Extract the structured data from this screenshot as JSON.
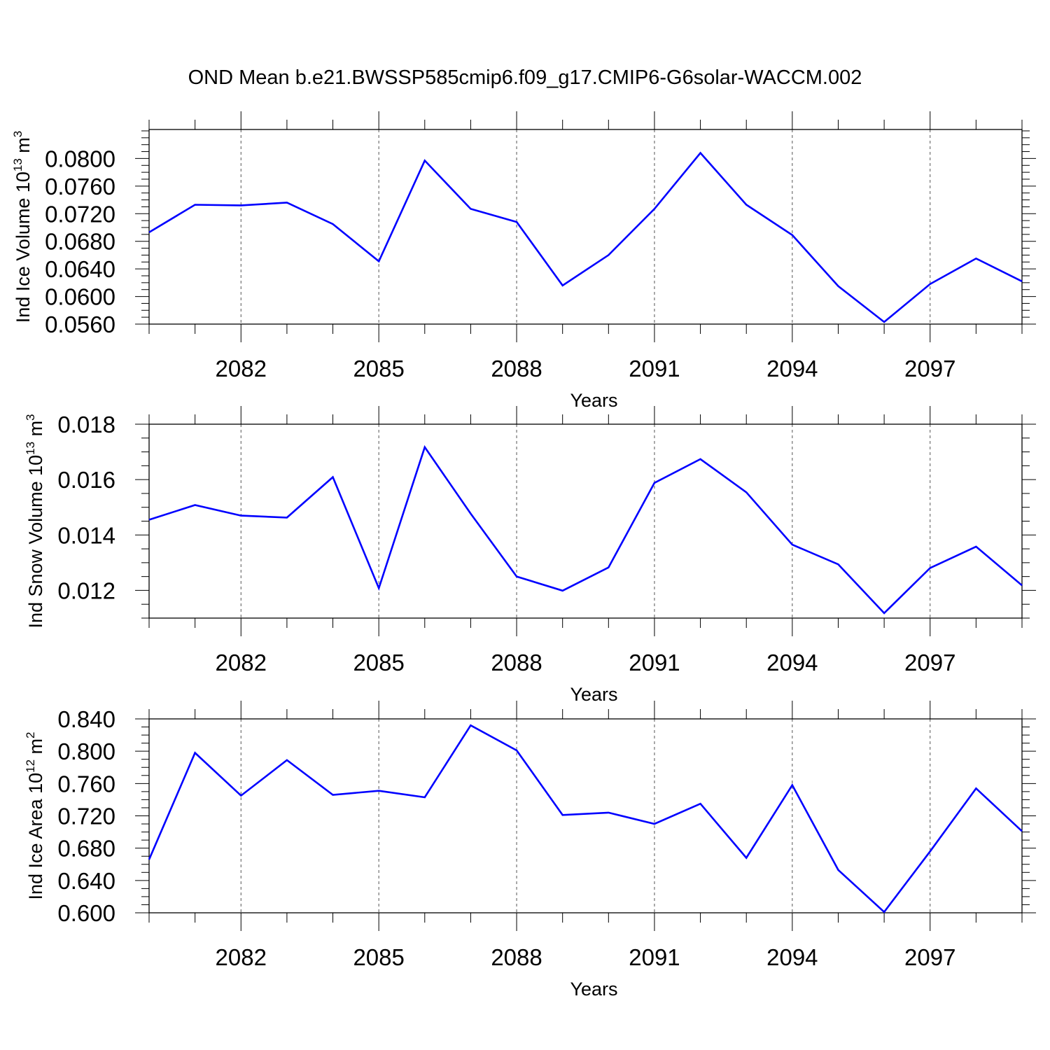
{
  "title": "OND Mean b.e21.BWSSP585cmip6.f09_g17.CMIP6-G6solar-WACCM.002",
  "chart_data": [
    {
      "type": "line",
      "ylabel": "Ind Ice Volume 10",
      "ylabel_exp": "13",
      "ylabel_unit": " m",
      "ylabel_unit_exp": "3",
      "xlabel": "Years",
      "xlim": [
        2080,
        2099
      ],
      "ylim": [
        0.056,
        0.0842
      ],
      "xticks": [
        2082,
        2085,
        2088,
        2091,
        2094,
        2097
      ],
      "xtick_labels": [
        "2082",
        "2085",
        "2088",
        "2091",
        "2094",
        "2097"
      ],
      "yticks": [
        0.056,
        0.06,
        0.064,
        0.068,
        0.072,
        0.076,
        0.08
      ],
      "ytick_labels": [
        "0.0560",
        "0.0600",
        "0.0640",
        "0.0680",
        "0.0720",
        "0.0760",
        "0.0800"
      ],
      "x": [
        2080,
        2081,
        2082,
        2083,
        2084,
        2085,
        2086,
        2087,
        2088,
        2089,
        2090,
        2091,
        2092,
        2093,
        2094,
        2095,
        2096,
        2097,
        2098,
        2099
      ],
      "values": [
        0.0693,
        0.0733,
        0.0732,
        0.0736,
        0.0705,
        0.0651,
        0.0797,
        0.0727,
        0.0708,
        0.0616,
        0.066,
        0.0727,
        0.0808,
        0.0733,
        0.0689,
        0.0615,
        0.0563,
        0.0618,
        0.0655,
        0.0622
      ],
      "color": "#0000ff"
    },
    {
      "type": "line",
      "ylabel": "Ind Snow Volume 10",
      "ylabel_exp": "13",
      "ylabel_unit": " m",
      "ylabel_unit_exp": "3",
      "xlabel": "Years",
      "xlim": [
        2080,
        2099
      ],
      "ylim": [
        0.011,
        0.018
      ],
      "xticks": [
        2082,
        2085,
        2088,
        2091,
        2094,
        2097
      ],
      "xtick_labels": [
        "2082",
        "2085",
        "2088",
        "2091",
        "2094",
        "2097"
      ],
      "yticks": [
        0.012,
        0.014,
        0.016,
        0.018
      ],
      "ytick_labels": [
        "0.012",
        "0.014",
        "0.016",
        "0.018"
      ],
      "x": [
        2080,
        2081,
        2082,
        2083,
        2084,
        2085,
        2086,
        2087,
        2088,
        2089,
        2090,
        2091,
        2092,
        2093,
        2094,
        2095,
        2096,
        2097,
        2098,
        2099
      ],
      "values": [
        0.01455,
        0.01508,
        0.0147,
        0.01463,
        0.01609,
        0.01208,
        0.01717,
        0.01477,
        0.0125,
        0.01199,
        0.01283,
        0.01588,
        0.01674,
        0.01554,
        0.01365,
        0.01294,
        0.01118,
        0.01281,
        0.01358,
        0.01218
      ],
      "color": "#0000ff"
    },
    {
      "type": "line",
      "ylabel": "Ind Ice Area 10",
      "ylabel_exp": "12",
      "ylabel_unit": " m",
      "ylabel_unit_exp": "2",
      "xlabel": "Years",
      "xlim": [
        2080,
        2099
      ],
      "ylim": [
        0.6,
        0.84
      ],
      "xticks": [
        2082,
        2085,
        2088,
        2091,
        2094,
        2097
      ],
      "xtick_labels": [
        "2082",
        "2085",
        "2088",
        "2091",
        "2094",
        "2097"
      ],
      "yticks": [
        0.6,
        0.64,
        0.68,
        0.72,
        0.76,
        0.8,
        0.84
      ],
      "ytick_labels": [
        "0.600",
        "0.640",
        "0.680",
        "0.720",
        "0.760",
        "0.800",
        "0.840"
      ],
      "x": [
        2080,
        2081,
        2082,
        2083,
        2084,
        2085,
        2086,
        2087,
        2088,
        2089,
        2090,
        2091,
        2092,
        2093,
        2094,
        2095,
        2096,
        2097,
        2098,
        2099
      ],
      "values": [
        0.666,
        0.798,
        0.745,
        0.789,
        0.746,
        0.751,
        0.743,
        0.832,
        0.801,
        0.721,
        0.724,
        0.71,
        0.735,
        0.668,
        0.758,
        0.653,
        0.601,
        0.676,
        0.754,
        0.701
      ],
      "color": "#0000ff"
    }
  ]
}
